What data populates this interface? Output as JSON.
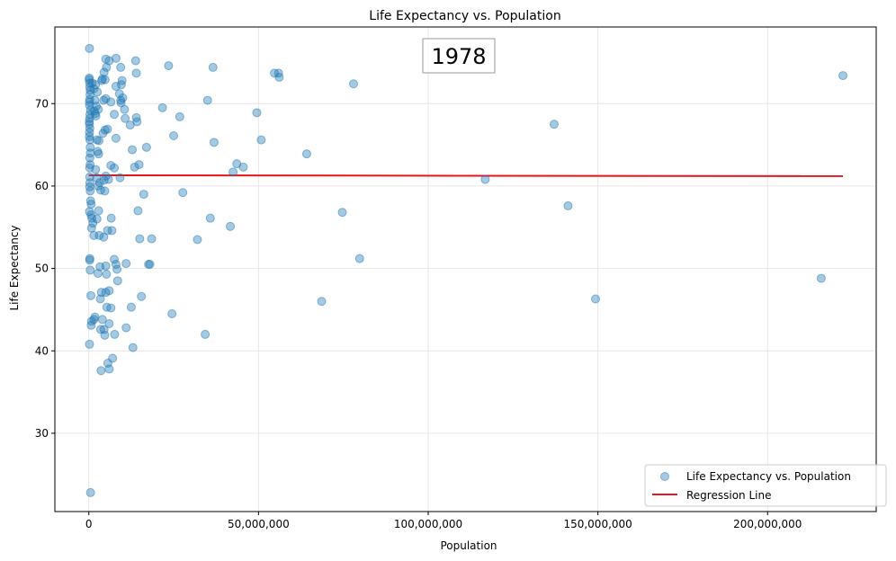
{
  "chart_data": {
    "type": "scatter",
    "title": "Life Expectancy vs. Population",
    "xlabel": "Population",
    "ylabel": "Life Expectancy",
    "annotation": "1978",
    "xlim": [
      -10000000,
      232000000
    ],
    "ylim": [
      20.5,
      79.3
    ],
    "xticks": [
      0,
      50000000,
      100000000,
      150000000,
      200000000
    ],
    "xtick_labels": [
      "0",
      "50,000,000",
      "100,000,000",
      "150,000,000",
      "200,000,000"
    ],
    "yticks": [
      30,
      40,
      50,
      60,
      70
    ],
    "ytick_labels": [
      "30",
      "40",
      "50",
      "60",
      "70"
    ],
    "grid": true,
    "legend_position": "bottom-right",
    "series": [
      {
        "name": "Life Expectancy vs. Population",
        "kind": "scatter",
        "color": "#1f77b4",
        "points": [
          [
            200000,
            76.7
          ],
          [
            150000,
            73.1
          ],
          [
            120000,
            72.9
          ],
          [
            250000,
            72.5
          ],
          [
            300000,
            72.0
          ],
          [
            400000,
            71.6
          ],
          [
            350000,
            71.1
          ],
          [
            280000,
            70.5
          ],
          [
            180000,
            70.2
          ],
          [
            220000,
            69.8
          ],
          [
            500000,
            69.2
          ],
          [
            330000,
            68.7
          ],
          [
            260000,
            68.2
          ],
          [
            150000,
            67.8
          ],
          [
            190000,
            67.5
          ],
          [
            300000,
            67.0
          ],
          [
            210000,
            66.5
          ],
          [
            160000,
            66.0
          ],
          [
            350000,
            65.6
          ],
          [
            400000,
            64.7
          ],
          [
            450000,
            64.0
          ],
          [
            300000,
            63.4
          ],
          [
            380000,
            62.6
          ],
          [
            250000,
            62.2
          ],
          [
            280000,
            61.1
          ],
          [
            310000,
            60.4
          ],
          [
            260000,
            59.9
          ],
          [
            420000,
            59.4
          ],
          [
            520000,
            58.2
          ],
          [
            700000,
            57.8
          ],
          [
            200000,
            56.9
          ],
          [
            650000,
            56.5
          ],
          [
            900000,
            56.1
          ],
          [
            1200000,
            55.5
          ],
          [
            800000,
            54.9
          ],
          [
            1500000,
            54.0
          ],
          [
            300000,
            51.2
          ],
          [
            250000,
            51.0
          ],
          [
            400000,
            49.8
          ],
          [
            600000,
            46.7
          ],
          [
            800000,
            43.6
          ],
          [
            700000,
            43.1
          ],
          [
            1500000,
            43.8
          ],
          [
            1800000,
            44.1
          ],
          [
            200000,
            40.8
          ],
          [
            500000,
            22.8
          ],
          [
            1000000,
            72.5
          ],
          [
            1500000,
            71.8
          ],
          [
            2000000,
            72.3
          ],
          [
            2500000,
            71.4
          ],
          [
            1800000,
            70.4
          ],
          [
            2200000,
            69.7
          ],
          [
            2800000,
            69.3
          ],
          [
            1600000,
            69.1
          ],
          [
            1900000,
            68.8
          ],
          [
            2100000,
            68.5
          ],
          [
            2400000,
            65.6
          ],
          [
            3000000,
            65.5
          ],
          [
            2600000,
            64.2
          ],
          [
            2900000,
            63.9
          ],
          [
            2000000,
            62.0
          ],
          [
            2300000,
            61.0
          ],
          [
            3200000,
            60.4
          ],
          [
            2700000,
            60.0
          ],
          [
            3500000,
            59.5
          ],
          [
            2900000,
            57.0
          ],
          [
            2400000,
            56.0
          ],
          [
            3100000,
            54.0
          ],
          [
            3300000,
            50.2
          ],
          [
            2700000,
            49.4
          ],
          [
            3400000,
            46.3
          ],
          [
            3700000,
            47.1
          ],
          [
            3500000,
            42.6
          ],
          [
            4000000,
            43.8
          ],
          [
            4500000,
            42.6
          ],
          [
            4700000,
            41.9
          ],
          [
            3600000,
            37.6
          ],
          [
            5000000,
            75.4
          ],
          [
            6000000,
            75.2
          ],
          [
            8000000,
            75.5
          ],
          [
            5200000,
            74.4
          ],
          [
            4500000,
            73.8
          ],
          [
            4000000,
            73.0
          ],
          [
            3800000,
            72.8
          ],
          [
            4800000,
            72.9
          ],
          [
            4400000,
            70.4
          ],
          [
            5000000,
            70.6
          ],
          [
            6500000,
            70.2
          ],
          [
            4200000,
            66.4
          ],
          [
            4800000,
            66.8
          ],
          [
            5500000,
            66.9
          ],
          [
            6500000,
            62.5
          ],
          [
            7500000,
            62.2
          ],
          [
            5000000,
            61.2
          ],
          [
            4500000,
            60.7
          ],
          [
            5800000,
            60.8
          ],
          [
            4700000,
            59.4
          ],
          [
            6600000,
            56.1
          ],
          [
            6800000,
            54.6
          ],
          [
            5500000,
            54.6
          ],
          [
            4400000,
            53.8
          ],
          [
            5000000,
            50.3
          ],
          [
            5200000,
            49.3
          ],
          [
            5000000,
            47.1
          ],
          [
            6000000,
            47.3
          ],
          [
            5300000,
            45.3
          ],
          [
            6500000,
            45.2
          ],
          [
            6000000,
            43.3
          ],
          [
            5600000,
            38.5
          ],
          [
            6000000,
            37.8
          ],
          [
            7000000,
            39.1
          ],
          [
            7600000,
            42.0
          ],
          [
            7500000,
            51.1
          ],
          [
            8000000,
            50.5
          ],
          [
            8300000,
            49.9
          ],
          [
            8500000,
            48.5
          ],
          [
            7500000,
            68.7
          ],
          [
            8000000,
            72.1
          ],
          [
            9000000,
            71.2
          ],
          [
            9400000,
            74.4
          ],
          [
            9600000,
            72.3
          ],
          [
            9800000,
            72.8
          ],
          [
            9400000,
            70.4
          ],
          [
            9500000,
            70.1
          ],
          [
            10000000,
            70.7
          ],
          [
            10500000,
            69.3
          ],
          [
            8000000,
            65.8
          ],
          [
            9200000,
            61.0
          ],
          [
            10700000,
            68.2
          ],
          [
            11000000,
            50.6
          ],
          [
            11000000,
            42.8
          ],
          [
            12200000,
            67.4
          ],
          [
            12800000,
            64.4
          ],
          [
            12500000,
            45.3
          ],
          [
            13000000,
            40.4
          ],
          [
            13500000,
            62.3
          ],
          [
            13800000,
            75.2
          ],
          [
            14000000,
            73.7
          ],
          [
            14000000,
            68.3
          ],
          [
            14200000,
            67.8
          ],
          [
            14800000,
            62.6
          ],
          [
            14500000,
            57.0
          ],
          [
            15000000,
            53.6
          ],
          [
            15500000,
            46.6
          ],
          [
            16200000,
            59.0
          ],
          [
            17000000,
            64.7
          ],
          [
            17600000,
            50.5
          ],
          [
            18000000,
            50.5
          ],
          [
            18500000,
            53.6
          ],
          [
            21700000,
            69.5
          ],
          [
            23500000,
            74.6
          ],
          [
            24500000,
            44.5
          ],
          [
            25000000,
            66.1
          ],
          [
            26800000,
            68.4
          ],
          [
            27700000,
            59.2
          ],
          [
            32000000,
            53.5
          ],
          [
            34300000,
            42.0
          ],
          [
            35000000,
            70.4
          ],
          [
            35800000,
            56.1
          ],
          [
            36600000,
            74.4
          ],
          [
            36900000,
            65.3
          ],
          [
            41700000,
            55.1
          ],
          [
            42500000,
            61.7
          ],
          [
            43600000,
            62.7
          ],
          [
            45500000,
            62.3
          ],
          [
            49500000,
            68.9
          ],
          [
            50800000,
            65.6
          ],
          [
            54700000,
            73.7
          ],
          [
            55900000,
            73.7
          ],
          [
            56100000,
            73.2
          ],
          [
            64200000,
            63.9
          ],
          [
            68600000,
            46.0
          ],
          [
            74700000,
            56.8
          ],
          [
            78000000,
            72.4
          ],
          [
            79800000,
            51.2
          ],
          [
            116800000,
            60.8
          ],
          [
            137100000,
            67.5
          ],
          [
            141200000,
            57.6
          ],
          [
            149300000,
            46.3
          ],
          [
            215800000,
            48.8
          ],
          [
            222200000,
            73.4
          ]
        ]
      },
      {
        "name": "Regression Line",
        "kind": "line",
        "color": "#e8141f",
        "x": [
          0,
          222200000
        ],
        "y": [
          61.3,
          61.2
        ]
      }
    ]
  }
}
